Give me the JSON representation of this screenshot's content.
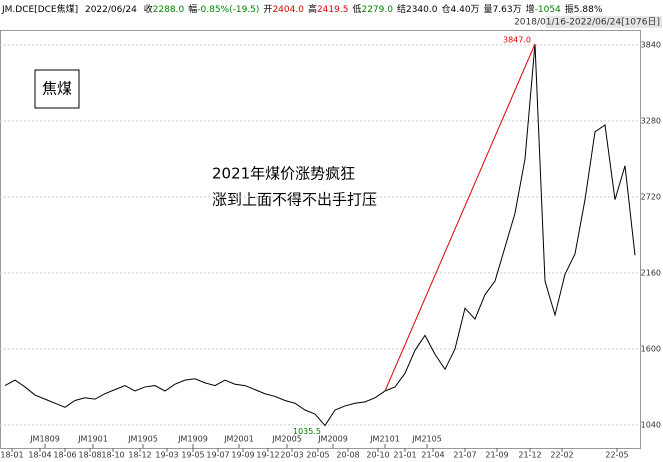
{
  "header": {
    "symbol": "JM.DCE[DCE焦煤]",
    "date": "2022/06/24",
    "items": [
      {
        "label": "收",
        "value": "2288.0",
        "color": "#008000"
      },
      {
        "label": "幅",
        "value": "-0.85%(-19.5)",
        "color": "#008000"
      },
      {
        "label": "开",
        "value": "2404.0",
        "color": "#e00000"
      },
      {
        "label": "高",
        "value": "2419.5",
        "color": "#e00000"
      },
      {
        "label": "低",
        "value": "2279.0",
        "color": "#008000"
      },
      {
        "label": "结",
        "value": "2340.0",
        "color": "#000000"
      },
      {
        "label": "仓",
        "value": "4.40万",
        "color": "#000000"
      },
      {
        "label": "量",
        "value": "7.63万",
        "color": "#000000"
      },
      {
        "label": "增",
        "value": "-1054",
        "color": "#008000"
      },
      {
        "label": "振",
        "value": "5.88%",
        "color": "#000000"
      }
    ]
  },
  "chart_data": {
    "type": "line",
    "range_label": "2018/01/16-2022/06/24[1076日]",
    "box_label": "焦煤",
    "annotation": [
      "2021年煤价涨势疯狂",
      "涨到上面不得不出手打压"
    ],
    "max_label": "3847.0",
    "min_label": "1035.5",
    "color": "#000000",
    "trend_color": "#e00000",
    "values": [
      1330,
      1370,
      1320,
      1260,
      1230,
      1200,
      1170,
      1220,
      1240,
      1230,
      1270,
      1300,
      1330,
      1290,
      1320,
      1330,
      1290,
      1340,
      1370,
      1380,
      1350,
      1330,
      1370,
      1340,
      1330,
      1300,
      1270,
      1250,
      1220,
      1200,
      1150,
      1120,
      1035.5,
      1150,
      1180,
      1200,
      1210,
      1240,
      1290,
      1320,
      1420,
      1590,
      1700,
      1560,
      1450,
      1600,
      1900,
      1820,
      2000,
      2100,
      2350,
      2600,
      3000,
      3847,
      2100,
      1850,
      2150,
      2300,
      2700,
      3200,
      3250,
      2700,
      2950,
      2290
    ],
    "xlim": [
      0,
      64
    ],
    "xticks": [
      {
        "value": 1.2,
        "label": "18-01"
      },
      {
        "value": 4,
        "label": "18-04"
      },
      {
        "value": 6.5,
        "label": "18-06"
      },
      {
        "value": 9,
        "label": "18-08"
      },
      {
        "value": 11.3,
        "label": "18-10"
      },
      {
        "value": 14,
        "label": "18-12"
      },
      {
        "value": 16.7,
        "label": "19-03"
      },
      {
        "value": 19.3,
        "label": "19-05"
      },
      {
        "value": 21.8,
        "label": "19-07"
      },
      {
        "value": 24.3,
        "label": "19-09"
      },
      {
        "value": 26.8,
        "label": "19-12"
      },
      {
        "value": 29.2,
        "label": "20-03"
      },
      {
        "value": 31.8,
        "label": "20-05"
      },
      {
        "value": 34.8,
        "label": "20-08"
      },
      {
        "value": 37.8,
        "label": "20-10"
      },
      {
        "value": 40.5,
        "label": "21-01"
      },
      {
        "value": 43.3,
        "label": "21-04"
      },
      {
        "value": 46.5,
        "label": "21-07"
      },
      {
        "value": 49.7,
        "label": "21-09"
      },
      {
        "value": 53,
        "label": "21-12"
      },
      {
        "value": 56.2,
        "label": "22-02"
      },
      {
        "value": 61.7,
        "label": "22-05"
      }
    ],
    "contract_ticks": [
      {
        "value": 4.5,
        "label": "JM1809"
      },
      {
        "value": 9.3,
        "label": "JM1901"
      },
      {
        "value": 14.3,
        "label": "JM1905"
      },
      {
        "value": 19.3,
        "label": "JM1909"
      },
      {
        "value": 23.9,
        "label": "JM2001"
      },
      {
        "value": 28.7,
        "label": "JM2005"
      },
      {
        "value": 33.3,
        "label": "JM2009"
      },
      {
        "value": 38.5,
        "label": "JM2101"
      },
      {
        "value": 42.7,
        "label": "JM2105"
      }
    ],
    "ylim": [
      870,
      3950
    ],
    "yticks": [
      1040,
      1600,
      2160,
      2720,
      3280,
      3840
    ],
    "grid": true
  }
}
